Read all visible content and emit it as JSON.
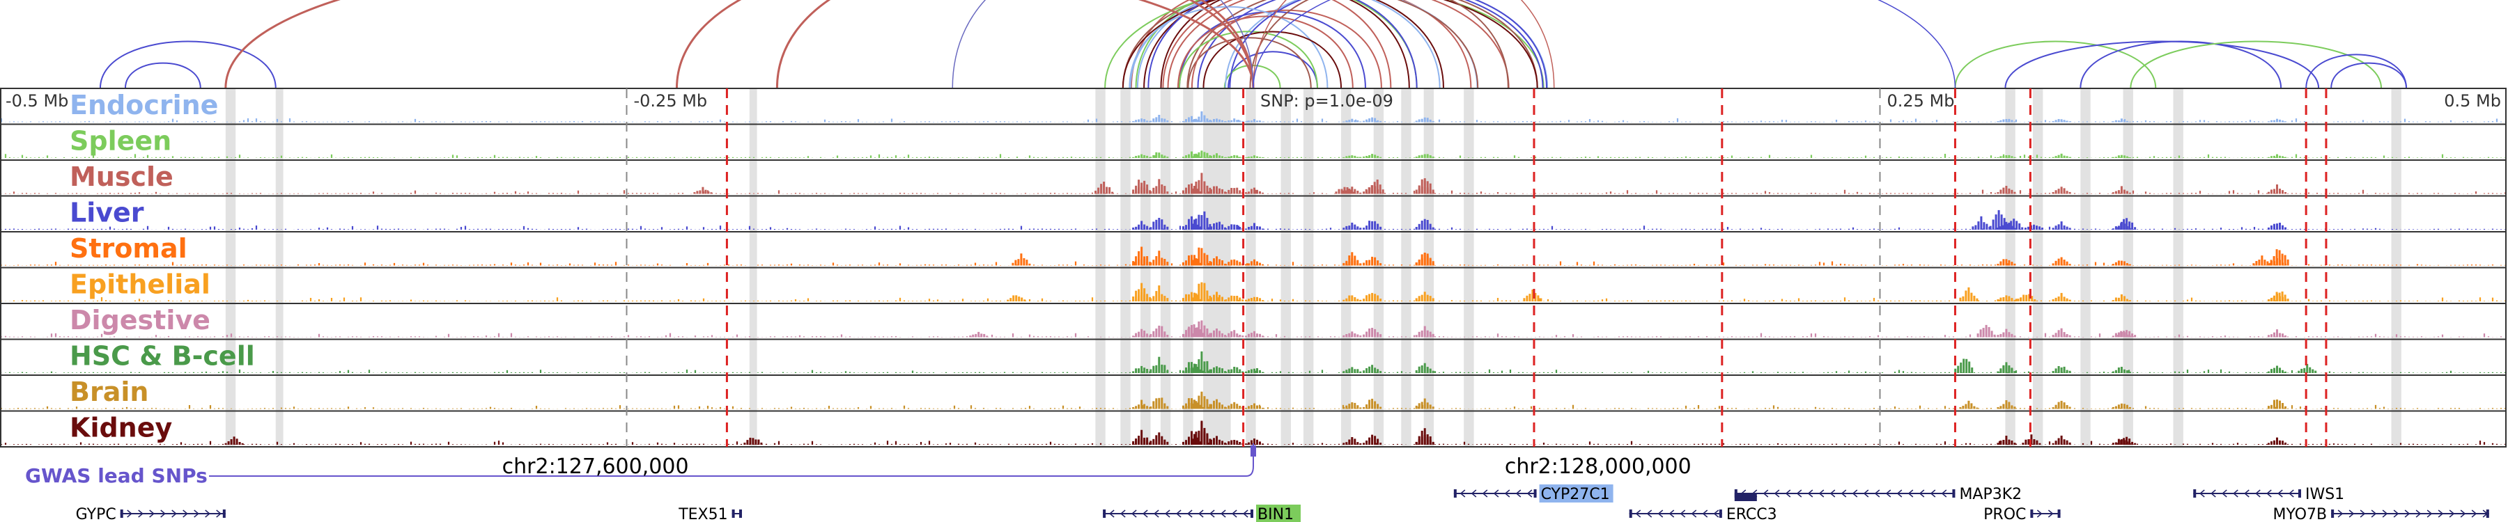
{
  "ruler": {
    "ticks": [
      {
        "label": "-0.5 Mb",
        "pos": 0.0
      },
      {
        "label": "-0.25 Mb",
        "pos": 0.25
      },
      {
        "label": "0.25 Mb",
        "pos": 0.75
      },
      {
        "label": "0.5 Mb",
        "pos": 1.0
      }
    ],
    "snp_label": "SNP: p=1.0e-09",
    "snp_pos": 0.5
  },
  "tracks": [
    {
      "label": "Endocrine",
      "color": "#8fb4ee"
    },
    {
      "label": "Spleen",
      "color": "#7ccc5c"
    },
    {
      "label": "Muscle",
      "color": "#c0605a"
    },
    {
      "label": "Liver",
      "color": "#4a4ad0"
    },
    {
      "label": "Stromal",
      "color": "#ff7010"
    },
    {
      "label": "Epithelial",
      "color": "#f8a020"
    },
    {
      "label": "Digestive",
      "color": "#cc88aa"
    },
    {
      "label": "HSC & B-cell",
      "color": "#4a9a4a"
    },
    {
      "label": "Brain",
      "color": "#c89028"
    },
    {
      "label": "Kidney",
      "color": "#6a0c0c"
    }
  ],
  "gwas": {
    "label": "GWAS lead SNPs",
    "color": "#6655cc"
  },
  "coords": [
    {
      "label": "chr2:127,600,000",
      "pos": 0.2
    },
    {
      "label": "chr2:128,000,000",
      "pos": 0.6
    }
  ],
  "genes": [
    {
      "name": "GYPC",
      "row": 1,
      "start": 0.048,
      "end": 0.09,
      "strand": "+",
      "label_side": "left"
    },
    {
      "name": "TEX51",
      "row": 1,
      "start": 0.292,
      "end": 0.296,
      "strand": "+",
      "label_side": "left"
    },
    {
      "name": "BIN1",
      "row": 1,
      "start": 0.44,
      "end": 0.5,
      "strand": "-",
      "label_side": "right",
      "highlight": "#7ccc5c"
    },
    {
      "name": "CYP27C1",
      "row": 0,
      "start": 0.58,
      "end": 0.613,
      "strand": "-",
      "label_side": "right",
      "highlight": "#8fb4ee"
    },
    {
      "name": "ERCC3",
      "row": 1,
      "start": 0.65,
      "end": 0.687,
      "strand": "-",
      "label_side": "right"
    },
    {
      "name": "MAP3K2",
      "row": 0,
      "start": 0.692,
      "end": 0.78,
      "strand": "-",
      "label_side": "right"
    },
    {
      "name": "PROC",
      "row": 1,
      "start": 0.81,
      "end": 0.822,
      "strand": "+",
      "label_side": "left"
    },
    {
      "name": "IWS1",
      "row": 0,
      "start": 0.875,
      "end": 0.918,
      "strand": "-",
      "label_side": "right"
    },
    {
      "name": "MYO7B",
      "row": 1,
      "start": 0.93,
      "end": 0.993,
      "strand": "+",
      "label_side": "left"
    }
  ]
}
